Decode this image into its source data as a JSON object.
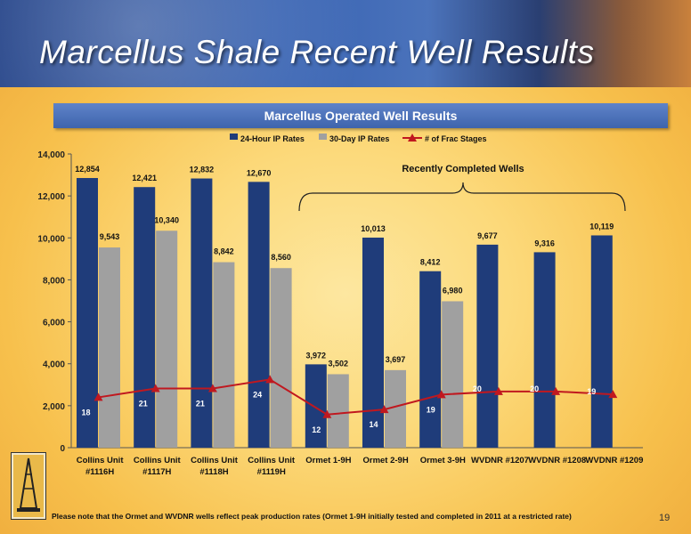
{
  "slide": {
    "title": "Marcellus Shale Recent Well Results",
    "banner": "Marcellus Operated Well Results",
    "footnote": "Please note that the Ormet and WVDNR wells reflect peak production rates (Ormet 1-9H initially tested and completed in 2011 at a restricted rate)",
    "page_number": "19"
  },
  "chart_data": {
    "type": "bar",
    "categories": [
      [
        "Collins Unit",
        "#1116H"
      ],
      [
        "Collins Unit",
        "#1117H"
      ],
      [
        "Collins Unit",
        "#1118H"
      ],
      [
        "Collins Unit",
        "#1119H"
      ],
      [
        "Ormet 1-9H"
      ],
      [
        "Ormet 2-9H"
      ],
      [
        "Ormet 3-9H"
      ],
      [
        "WVDNR #1207"
      ],
      [
        "WVDNR #1208"
      ],
      [
        "WVDNR #1209"
      ]
    ],
    "ylim": [
      0,
      14000
    ],
    "yticks": [
      "0",
      "2,000",
      "4,000",
      "6,000",
      "8,000",
      "10,000",
      "12,000",
      "14,000"
    ],
    "ytick_values": [
      0,
      2000,
      4000,
      6000,
      8000,
      10000,
      12000,
      14000
    ],
    "legend_position": "top",
    "series": [
      {
        "name": "24-Hour IP Rates",
        "kind": "bar",
        "color": "#1f3c7a",
        "values": [
          12854,
          12421,
          12832,
          12670,
          3972,
          10013,
          8412,
          9677,
          9316,
          10119
        ],
        "labels": [
          "12,854",
          "12,421",
          "12,832",
          "12,670",
          "3,972",
          "10,013",
          "8,412",
          "9,677",
          "9,316",
          "10,119"
        ]
      },
      {
        "name": "30-Day IP Rates",
        "kind": "bar",
        "color": "#a0a0a0",
        "values": [
          9543,
          10340,
          8842,
          8560,
          3502,
          3697,
          6980,
          null,
          null,
          null
        ],
        "labels": [
          "9,543",
          "10,340",
          "8,842",
          "8,560",
          "3,502",
          "3,697",
          "6,980",
          "",
          "",
          ""
        ]
      },
      {
        "name": "# of Frac Stages",
        "kind": "line",
        "color": "#c0181f",
        "values": [
          2400,
          2820,
          2820,
          3250,
          1580,
          1820,
          2530,
          2680,
          2680,
          2540
        ],
        "labels": [
          "18",
          "21",
          "21",
          "24",
          "12",
          "14",
          "19",
          "20",
          "20",
          "19"
        ]
      }
    ],
    "annotation": "Recently Completed Wells"
  }
}
